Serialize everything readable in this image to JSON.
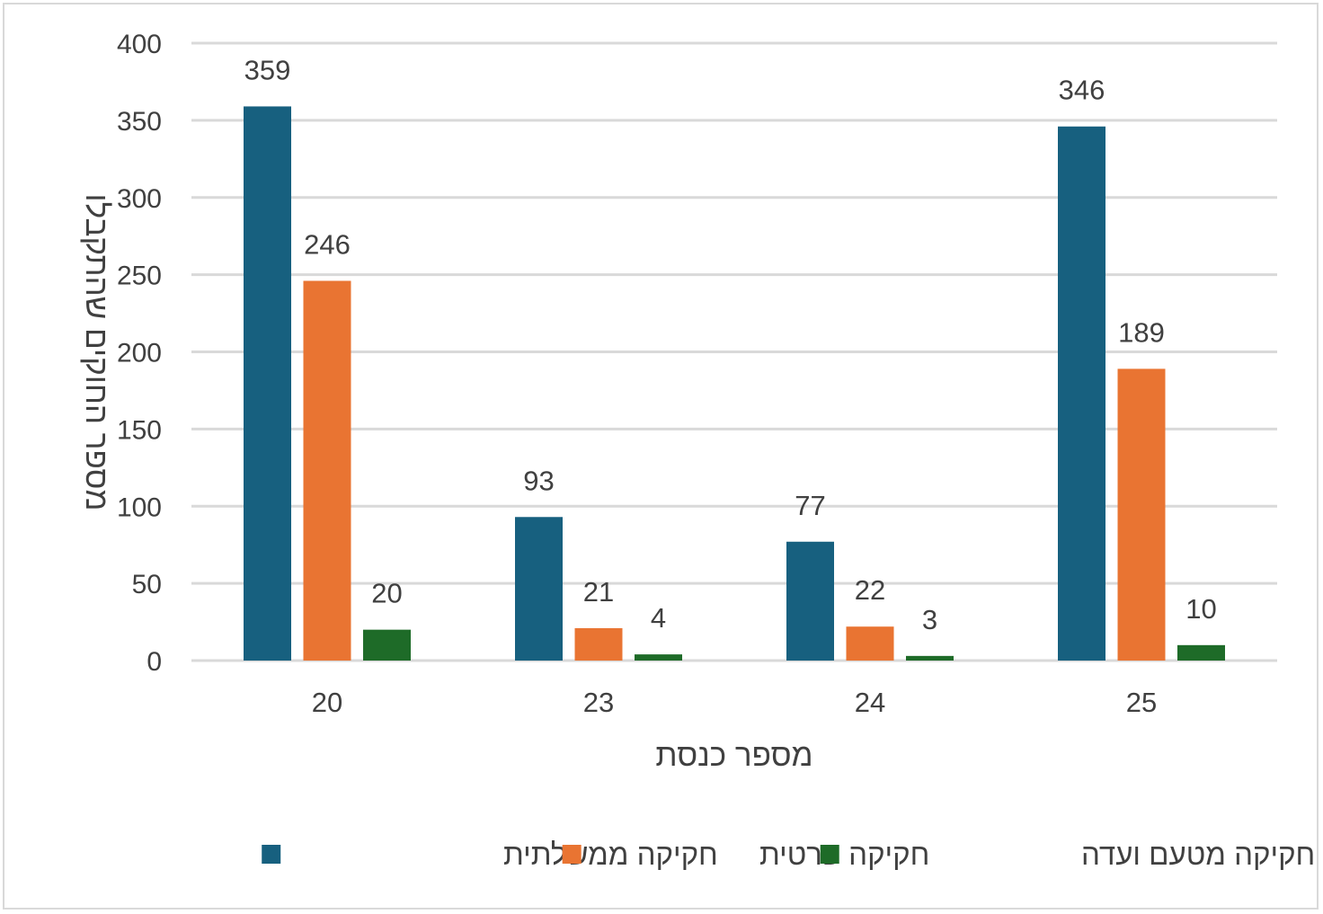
{
  "chart_data": {
    "type": "bar",
    "categories": [
      "20",
      "23",
      "24",
      "25"
    ],
    "series": [
      {
        "name": "חקיקה ממשלתית",
        "values": [
          359,
          93,
          77,
          346
        ],
        "color": "#17607f"
      },
      {
        "name": "חקיקה פרטית",
        "values": [
          246,
          21,
          22,
          189
        ],
        "color": "#e97432"
      },
      {
        "name": "חקיקה מטעם ועדה",
        "values": [
          20,
          4,
          3,
          10
        ],
        "color": "#1e6b28"
      }
    ],
    "title": "",
    "xlabel": "מספר כנסת",
    "ylabel": "מספר החוקים שהתקבלו",
    "ylim": [
      0,
      400
    ],
    "yticks": [
      0,
      50,
      100,
      150,
      200,
      250,
      300,
      350,
      400
    ],
    "grid": true,
    "gridline_color": "#d9d9d9",
    "legend_position": "bottom",
    "data_labels": true
  }
}
